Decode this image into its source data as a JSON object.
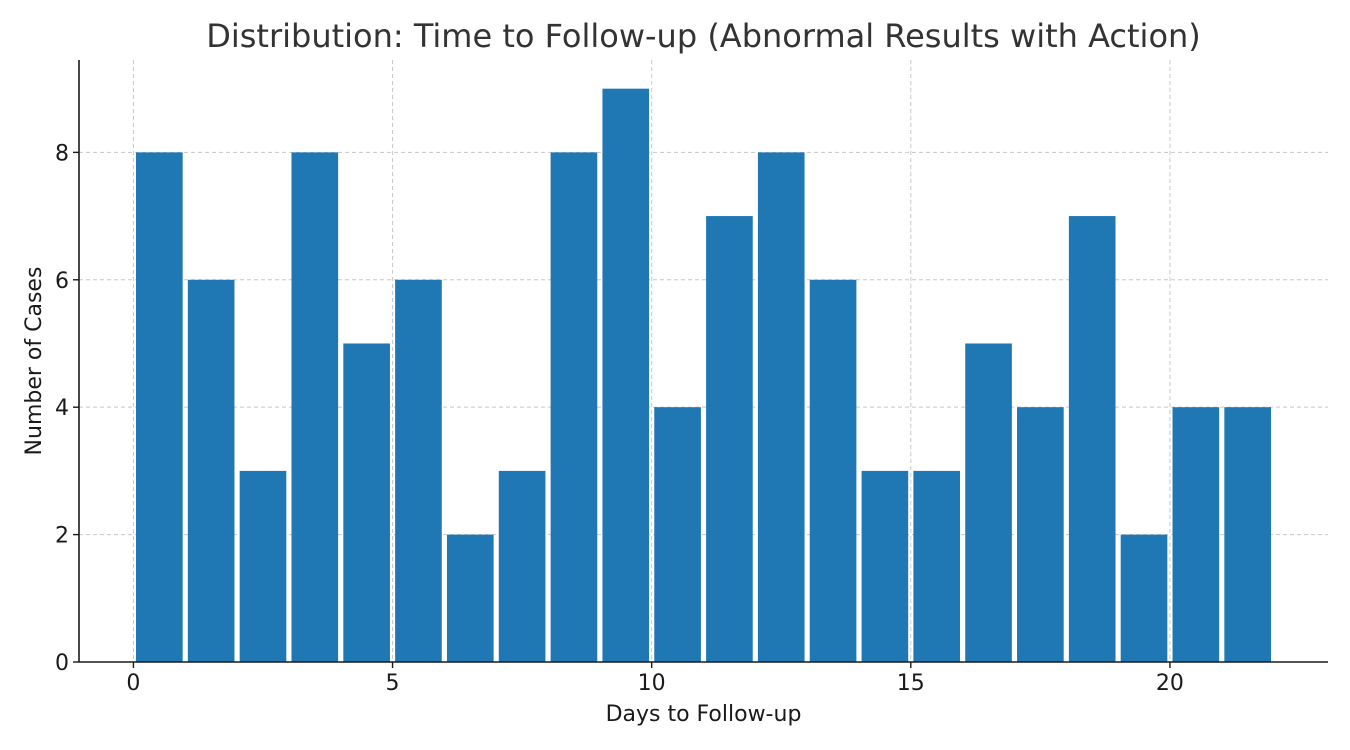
{
  "chart_data": {
    "type": "bar",
    "title": "Distribution: Time to Follow-up (Abnormal Results with Action)",
    "xlabel": "Days to Follow-up",
    "ylabel": "Number of Cases",
    "bin_edges": [
      0,
      1,
      2,
      3,
      4,
      5,
      6,
      7,
      8,
      9,
      10,
      11,
      12,
      13,
      14,
      15,
      16,
      17,
      18,
      19,
      20,
      21,
      22
    ],
    "values": [
      8,
      6,
      3,
      8,
      5,
      6,
      2,
      3,
      8,
      9,
      4,
      7,
      8,
      6,
      3,
      3,
      5,
      4,
      7,
      2,
      4,
      4
    ],
    "xlim": [
      -1.05,
      23.05
    ],
    "ylim": [
      0,
      9.45
    ],
    "xticks": [
      0,
      5,
      10,
      15,
      20
    ],
    "yticks": [
      0,
      2,
      4,
      6,
      8
    ],
    "bar_color": "#1f77b4",
    "grid": true
  }
}
